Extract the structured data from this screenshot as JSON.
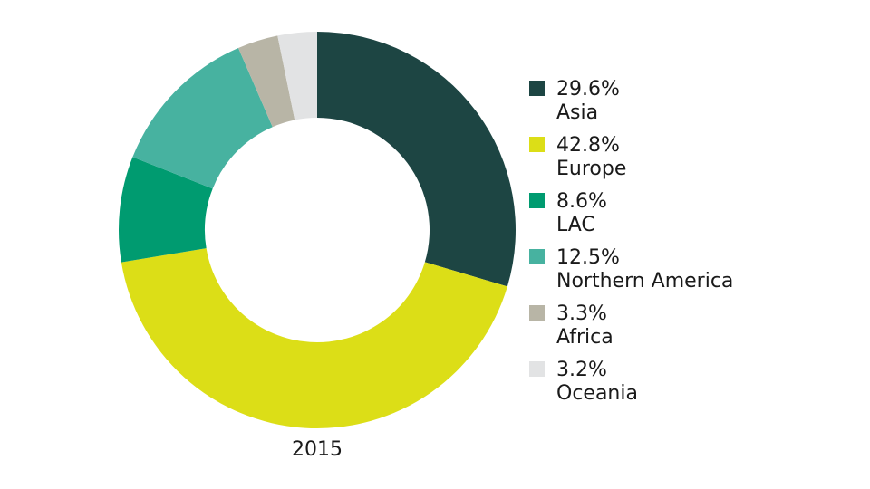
{
  "chart_data": {
    "type": "pie",
    "variant": "donut",
    "categories": [
      "Asia",
      "Europe",
      "LAC",
      "Northern America",
      "Africa",
      "Oceania"
    ],
    "values": [
      29.6,
      42.8,
      8.6,
      12.5,
      3.3,
      3.2
    ],
    "value_labels": [
      "29.6%",
      "42.8%",
      "8.6%",
      "12.5%",
      "3.3%",
      "3.2%"
    ],
    "colors": [
      "#1d4543",
      "#dcde17",
      "#009b70",
      "#47b2a0",
      "#b8b5a6",
      "#e2e3e4"
    ],
    "center_caption": "2015",
    "legend_position": "right",
    "title": ""
  }
}
